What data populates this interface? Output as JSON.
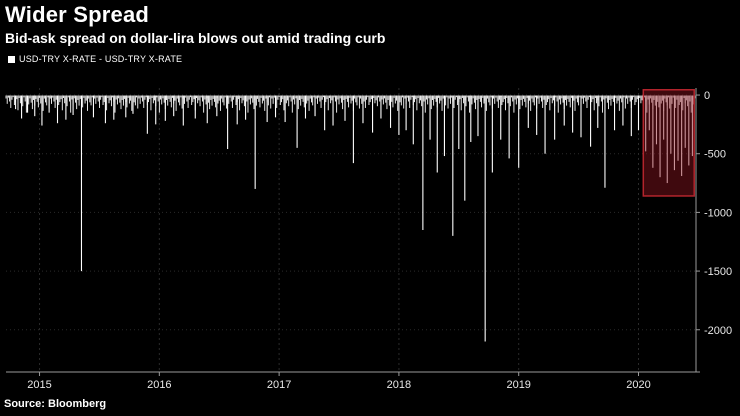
{
  "header": {
    "title": "Wider Spread",
    "subtitle": "Bid-ask spread on dollar-lira blows out amid trading curb"
  },
  "legend": {
    "label": "USD-TRY X-RATE - USD-TRY X-RATE"
  },
  "source": "Source: Bloomberg",
  "chart_data": {
    "type": "line",
    "title": "Wider Spread",
    "subtitle": "Bid-ask spread on dollar-lira blows out amid trading curb",
    "legend_entries": [
      "USD-TRY X-RATE - USD-TRY X-RATE"
    ],
    "xlabel": "",
    "ylabel": "",
    "x_range": [
      2014.72,
      2020.48
    ],
    "ylim": [
      -2360,
      60
    ],
    "x_ticks": [
      {
        "value": 2015,
        "label": "2015"
      },
      {
        "value": 2016,
        "label": "2016"
      },
      {
        "value": 2017,
        "label": "2017"
      },
      {
        "value": 2018,
        "label": "2018"
      },
      {
        "value": 2019,
        "label": "2019"
      },
      {
        "value": 2020,
        "label": "2020"
      }
    ],
    "y_ticks": [
      {
        "value": 0,
        "label": "0"
      },
      {
        "value": -500,
        "label": "-500"
      },
      {
        "value": -1000,
        "label": "-1000"
      },
      {
        "value": -1500,
        "label": "-1500"
      },
      {
        "value": -2000,
        "label": "-2000"
      }
    ],
    "sample_step": 0.01,
    "noise_pattern": [
      -30,
      -75,
      -22,
      -55,
      -110,
      -40,
      -18,
      -85,
      -60,
      -35,
      -130,
      -25,
      -70,
      -45,
      -95,
      -20,
      -55,
      -150,
      -38,
      -80,
      -28,
      -65,
      -120,
      -42,
      -90,
      -33,
      -58,
      -105,
      -24,
      -72,
      -48,
      -135,
      -30,
      -62,
      -88,
      -20,
      -115
    ],
    "spikes": [
      [
        2014.8,
        -120
      ],
      [
        2014.85,
        -200
      ],
      [
        2014.9,
        -150
      ],
      [
        2014.96,
        -180
      ],
      [
        2015.02,
        -260
      ],
      [
        2015.08,
        -150
      ],
      [
        2015.15,
        -240
      ],
      [
        2015.22,
        -210
      ],
      [
        2015.28,
        -170
      ],
      [
        2015.35,
        -1500
      ],
      [
        2015.45,
        -190
      ],
      [
        2015.55,
        -240
      ],
      [
        2015.62,
        -210
      ],
      [
        2015.72,
        -190
      ],
      [
        2015.78,
        -160
      ],
      [
        2015.9,
        -330
      ],
      [
        2015.97,
        -250
      ],
      [
        2016.05,
        -220
      ],
      [
        2016.12,
        -180
      ],
      [
        2016.2,
        -260
      ],
      [
        2016.3,
        -200
      ],
      [
        2016.4,
        -240
      ],
      [
        2016.48,
        -180
      ],
      [
        2016.57,
        -460
      ],
      [
        2016.65,
        -250
      ],
      [
        2016.72,
        -210
      ],
      [
        2016.8,
        -800
      ],
      [
        2016.9,
        -230
      ],
      [
        2016.97,
        -190
      ],
      [
        2017.05,
        -230
      ],
      [
        2017.15,
        -450
      ],
      [
        2017.22,
        -200
      ],
      [
        2017.3,
        -180
      ],
      [
        2017.38,
        -300
      ],
      [
        2017.45,
        -260
      ],
      [
        2017.55,
        -220
      ],
      [
        2017.62,
        -580
      ],
      [
        2017.7,
        -240
      ],
      [
        2017.78,
        -320
      ],
      [
        2017.85,
        -200
      ],
      [
        2017.93,
        -280
      ],
      [
        2018.0,
        -340
      ],
      [
        2018.06,
        -300
      ],
      [
        2018.12,
        -420
      ],
      [
        2018.2,
        -1150
      ],
      [
        2018.26,
        -380
      ],
      [
        2018.32,
        -660
      ],
      [
        2018.38,
        -520
      ],
      [
        2018.45,
        -1200
      ],
      [
        2018.5,
        -460
      ],
      [
        2018.55,
        -900
      ],
      [
        2018.6,
        -400
      ],
      [
        2018.66,
        -350
      ],
      [
        2018.72,
        -2100
      ],
      [
        2018.78,
        -660
      ],
      [
        2018.85,
        -380
      ],
      [
        2018.92,
        -540
      ],
      [
        2019.0,
        -620
      ],
      [
        2019.08,
        -280
      ],
      [
        2019.15,
        -340
      ],
      [
        2019.22,
        -500
      ],
      [
        2019.3,
        -380
      ],
      [
        2019.38,
        -260
      ],
      [
        2019.45,
        -320
      ],
      [
        2019.52,
        -360
      ],
      [
        2019.6,
        -440
      ],
      [
        2019.66,
        -280
      ],
      [
        2019.72,
        -790
      ],
      [
        2019.8,
        -300
      ],
      [
        2019.87,
        -260
      ],
      [
        2019.94,
        -350
      ],
      [
        2020.0,
        -300
      ],
      [
        2020.06,
        -480
      ],
      [
        2020.09,
        -300
      ],
      [
        2020.12,
        -620
      ],
      [
        2020.15,
        -420
      ],
      [
        2020.18,
        -700
      ],
      [
        2020.21,
        -380
      ],
      [
        2020.24,
        -750
      ],
      [
        2020.27,
        -500
      ],
      [
        2020.3,
        -640
      ],
      [
        2020.33,
        -560
      ],
      [
        2020.36,
        -690
      ],
      [
        2020.39,
        -450
      ],
      [
        2020.42,
        -600
      ],
      [
        2020.45,
        -520
      ]
    ],
    "highlight": {
      "x0": 2020.04,
      "x1": 2020.465,
      "y0": -860,
      "y1": 45,
      "fill": "#8c1520",
      "fill_opacity": 0.45,
      "border": "#b3242c"
    },
    "colors": {
      "series": "#ffffff",
      "grid": "#2a2a2a",
      "axis": "#9a9a9a",
      "tick_text": "#e8e8e8",
      "background": "#000000"
    },
    "legend_position": "top-left",
    "grid": true
  }
}
